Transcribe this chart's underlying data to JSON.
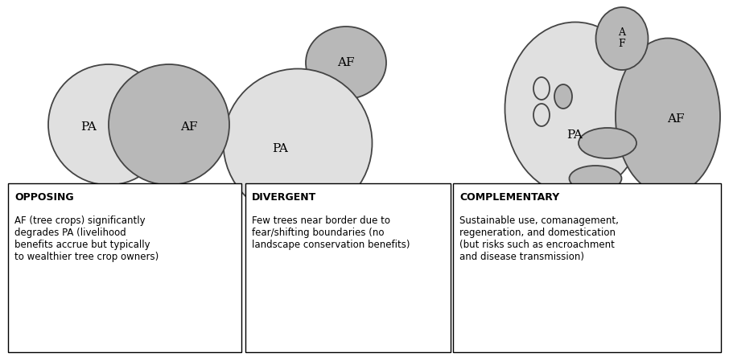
{
  "bg_color": "#ffffff",
  "af_color": "#b8b8b8",
  "pa_color": "#e0e0e0",
  "small_af_color": "#b8b8b8",
  "outline_color": "#444444",
  "text_color": "#000000",
  "box_texts": [
    {
      "title": "OPPOSING",
      "body": "AF (tree crops) significantly\ndegrades PA (livelihood\nbenefits accrue but typically\nto wealthier tree crop owners)"
    },
    {
      "title": "DIVERGENT",
      "body": "Few trees near border due to\nfear/shifting boundaries (no\nlandscape conservation benefits)"
    },
    {
      "title": "COMPLEMENTARY",
      "body": "Sustainable use, comanagement,\nregeneration, and domestication\n(but risks such as encroachment\nand disease transmission)"
    }
  ]
}
